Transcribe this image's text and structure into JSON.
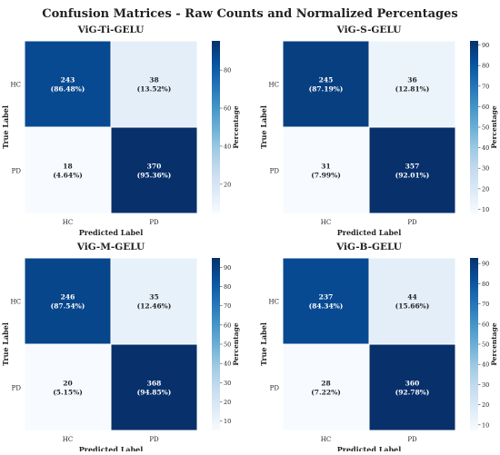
{
  "figure": {
    "title": "Confusion Matrices - Raw Counts and Normalized Percentages"
  },
  "chart_data": [
    {
      "type": "heatmap",
      "title": "ViG-Ti-GELU",
      "xlabel": "Predicted Label",
      "ylabel": "True Label",
      "x_categories": [
        "HC",
        "PD"
      ],
      "y_categories": [
        "HC",
        "PD"
      ],
      "counts": [
        [
          243,
          38
        ],
        [
          18,
          370
        ]
      ],
      "percent_labels": [
        [
          "(86.48%)",
          "(13.52%)"
        ],
        [
          "(4.64%)",
          "(95.36%)"
        ]
      ],
      "percentages": [
        [
          86.48,
          13.52
        ],
        [
          4.64,
          95.36
        ]
      ],
      "colorbar": {
        "label": "Percentage",
        "ticks": [
          20,
          40,
          60,
          80
        ],
        "range": [
          4.64,
          95.36
        ]
      }
    },
    {
      "type": "heatmap",
      "title": "ViG-S-GELU",
      "xlabel": "Predicted Label",
      "ylabel": "True Label",
      "x_categories": [
        "HC",
        "PD"
      ],
      "y_categories": [
        "HC",
        "PD"
      ],
      "counts": [
        [
          245,
          36
        ],
        [
          31,
          357
        ]
      ],
      "percent_labels": [
        [
          "(87.19%)",
          "(12.81%)"
        ],
        [
          "(7.99%)",
          "(92.01%)"
        ]
      ],
      "percentages": [
        [
          87.19,
          12.81
        ],
        [
          7.99,
          92.01
        ]
      ],
      "colorbar": {
        "label": "Percentage",
        "ticks": [
          10,
          20,
          30,
          40,
          50,
          60,
          70,
          80,
          90
        ],
        "range": [
          7.99,
          92.01
        ]
      }
    },
    {
      "type": "heatmap",
      "title": "ViG-M-GELU",
      "xlabel": "Predicted Label",
      "ylabel": "True Label",
      "x_categories": [
        "HC",
        "PD"
      ],
      "y_categories": [
        "HC",
        "PD"
      ],
      "counts": [
        [
          246,
          35
        ],
        [
          20,
          368
        ]
      ],
      "percent_labels": [
        [
          "(87.54%)",
          "(12.46%)"
        ],
        [
          "(5.15%)",
          "(94.85%)"
        ]
      ],
      "percentages": [
        [
          87.54,
          12.46
        ],
        [
          5.15,
          94.85
        ]
      ],
      "colorbar": {
        "label": "Percentage",
        "ticks": [
          10,
          20,
          30,
          40,
          50,
          60,
          70,
          80,
          90
        ],
        "range": [
          5.15,
          94.85
        ]
      }
    },
    {
      "type": "heatmap",
      "title": "ViG-B-GELU",
      "xlabel": "Predicted Label",
      "ylabel": "True Label",
      "x_categories": [
        "HC",
        "PD"
      ],
      "y_categories": [
        "HC",
        "PD"
      ],
      "counts": [
        [
          237,
          44
        ],
        [
          28,
          360
        ]
      ],
      "percent_labels": [
        [
          "(84.34%)",
          "(15.66%)"
        ],
        [
          "(7.22%)",
          "(92.78%)"
        ]
      ],
      "percentages": [
        [
          84.34,
          15.66
        ],
        [
          7.22,
          92.78
        ]
      ],
      "colorbar": {
        "label": "Percentage",
        "ticks": [
          10,
          20,
          30,
          40,
          50,
          60,
          70,
          80,
          90
        ],
        "range": [
          7.22,
          92.78
        ]
      }
    }
  ],
  "colors": {
    "colormap": [
      "#f7fbff",
      "#deebf7",
      "#c6dbef",
      "#9ecae1",
      "#6baed6",
      "#4292c6",
      "#2171b5",
      "#08519c",
      "#08306b"
    ],
    "text_dark": "#222222",
    "text_light": "#ffffff"
  }
}
